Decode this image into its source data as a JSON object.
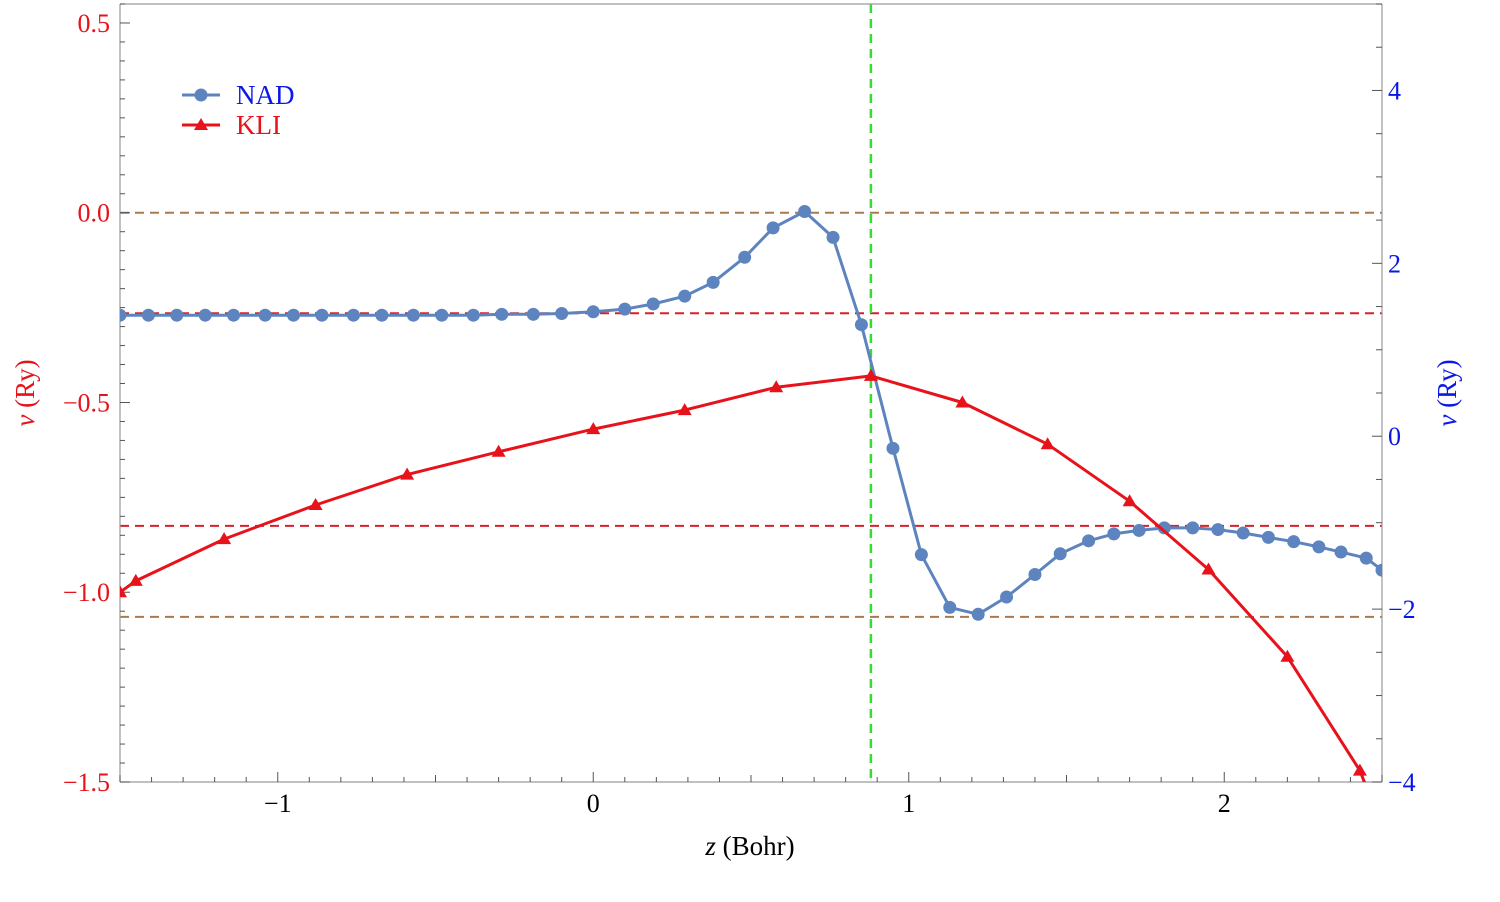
{
  "colors": {
    "left_axis": "#e8121a",
    "right_axis": "#0a18e6",
    "nad_series": "#5d84bf",
    "kli_series": "#e8121a",
    "vertical_marker": "#33dd33",
    "brown_ref": "#a87a4e",
    "red_ref": "#d8202a",
    "frame": "#9a9a9a"
  },
  "chart_data": {
    "type": "line",
    "title": "",
    "xlabel": {
      "var": "z",
      "unit": " (Bohr)"
    },
    "ylabel_left": {
      "var": "v",
      "unit": " (Ry)"
    },
    "ylabel_right": {
      "var": "v",
      "unit": " (Ry)"
    },
    "xlim": [
      -1.5,
      2.5
    ],
    "ylim_left": [
      -1.5,
      0.55
    ],
    "ylim_right": [
      -4,
      5
    ],
    "x_ticks": [
      {
        "value": -1,
        "label": "−1"
      },
      {
        "value": 0,
        "label": "0"
      },
      {
        "value": 1,
        "label": "1"
      },
      {
        "value": 2,
        "label": "2"
      }
    ],
    "y_left_ticks": [
      {
        "value": 0.5,
        "label": "0.5"
      },
      {
        "value": 0.0,
        "label": "0.0"
      },
      {
        "value": -0.5,
        "label": "−0.5"
      },
      {
        "value": -1.0,
        "label": "−1.0"
      },
      {
        "value": -1.5,
        "label": "−1.5"
      }
    ],
    "y_right_ticks": [
      {
        "value": 4,
        "label": "4"
      },
      {
        "value": 2,
        "label": "2"
      },
      {
        "value": 0,
        "label": "0"
      },
      {
        "value": -2,
        "label": "−2"
      },
      {
        "value": -4,
        "label": "−4"
      }
    ],
    "legend_position": "top-left",
    "grid": false,
    "series": [
      {
        "name": "NAD",
        "axis": "right",
        "marker": "circle",
        "x": [
          -1.5,
          -1.41,
          -1.32,
          -1.23,
          -1.14,
          -1.04,
          -0.95,
          -0.86,
          -0.76,
          -0.67,
          -0.57,
          -0.48,
          -0.38,
          -0.29,
          -0.19,
          -0.1,
          0.0,
          0.1,
          0.19,
          0.29,
          0.38,
          0.48,
          0.57,
          0.67,
          0.76,
          0.85,
          0.95,
          1.04,
          1.13,
          1.22,
          1.31,
          1.4,
          1.48,
          1.57,
          1.65,
          1.73,
          1.81,
          1.9,
          1.98,
          2.06,
          2.14,
          2.22,
          2.3,
          2.37,
          2.45,
          2.5
        ],
        "y": [
          1.4,
          1.4,
          1.4,
          1.4,
          1.4,
          1.4,
          1.4,
          1.4,
          1.4,
          1.4,
          1.4,
          1.4,
          1.4,
          1.41,
          1.41,
          1.42,
          1.44,
          1.47,
          1.53,
          1.62,
          1.78,
          2.07,
          2.41,
          2.6,
          2.3,
          1.29,
          -0.14,
          -1.37,
          -1.98,
          -2.06,
          -1.86,
          -1.6,
          -1.36,
          -1.21,
          -1.13,
          -1.09,
          -1.06,
          -1.06,
          -1.08,
          -1.12,
          -1.17,
          -1.22,
          -1.28,
          -1.34,
          -1.41,
          -1.55
        ]
      },
      {
        "name": "KLI",
        "axis": "left",
        "marker": "triangle",
        "x": [
          -1.5,
          -1.45,
          -1.17,
          -0.88,
          -0.59,
          -0.3,
          0.0,
          0.29,
          0.58,
          0.88,
          1.17,
          1.44,
          1.7,
          1.95,
          2.2,
          2.43,
          2.5
        ],
        "y": [
          -1.0,
          -0.97,
          -0.86,
          -0.77,
          -0.69,
          -0.63,
          -0.57,
          -0.52,
          -0.46,
          -0.43,
          -0.5,
          -0.61,
          -0.76,
          -0.94,
          -1.17,
          -1.47,
          -1.62
        ]
      }
    ],
    "reference_lines": [
      {
        "orientation": "horizontal",
        "axis": "left",
        "value": 0.0,
        "style": "dashed",
        "color_key": "brown_ref"
      },
      {
        "orientation": "horizontal",
        "axis": "left",
        "value": -1.065,
        "style": "dashed",
        "color_key": "brown_ref"
      },
      {
        "orientation": "horizontal",
        "axis": "left",
        "value": -0.265,
        "style": "dashed",
        "color_key": "red_ref"
      },
      {
        "orientation": "horizontal",
        "axis": "left",
        "value": -0.825,
        "style": "dashed",
        "color_key": "red_ref"
      },
      {
        "orientation": "vertical",
        "value": 0.88,
        "style": "dashed",
        "color_key": "vertical_marker"
      }
    ]
  }
}
